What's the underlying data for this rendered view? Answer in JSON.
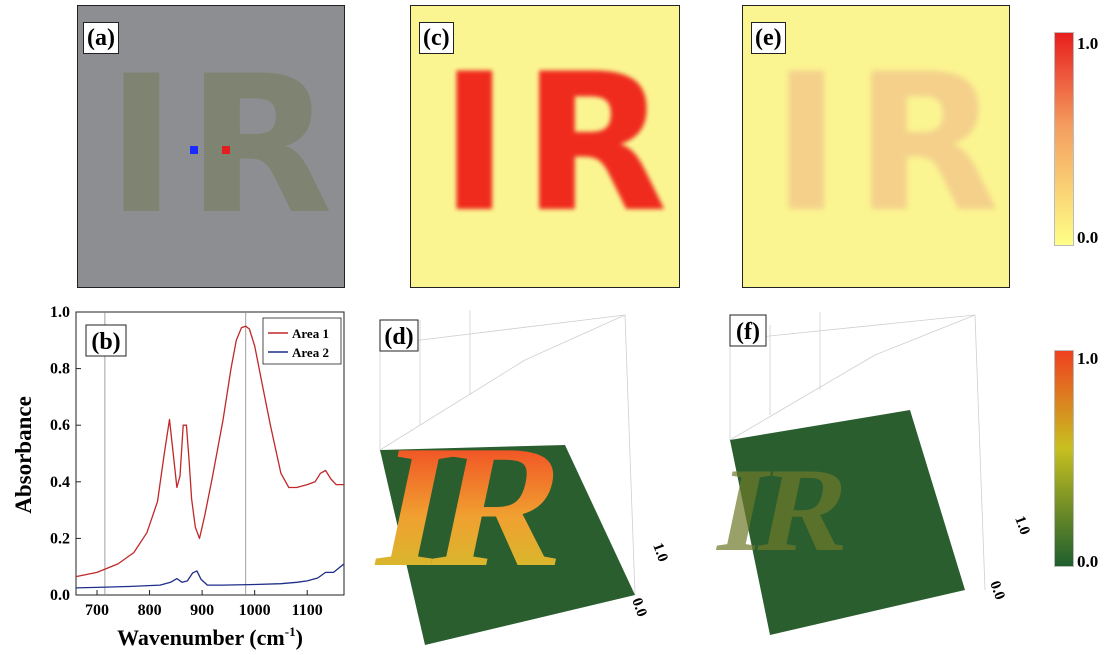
{
  "panels": {
    "a": {
      "label": "(a)",
      "image_text": "IR"
    },
    "b": {
      "label": "(b)"
    },
    "c": {
      "label": "(c)",
      "image_text": "IR"
    },
    "d": {
      "label": "(d)",
      "image_text": "IR"
    },
    "e": {
      "label": "(e)",
      "image_text": "IR"
    },
    "f": {
      "label": "(f)",
      "image_text": "IR"
    }
  },
  "colorbar_top": {
    "max": "1.0",
    "min": "0.0",
    "colors": [
      "#ffff88",
      "#f4a060",
      "#e81e1e"
    ]
  },
  "colorbar_bottom": {
    "max": "1.0",
    "min": "0.0",
    "colors": [
      "#1e5e2e",
      "#c8c020",
      "#f04020"
    ]
  },
  "axis3d_d": {
    "z_min": "0.0",
    "z_max": "1.0"
  },
  "axis3d_f": {
    "z_min": "0.0",
    "z_max": "1.0"
  },
  "colors": {
    "area1": "#c0282a",
    "area2": "#1f2d8a",
    "panel_a_bg": "#8c8e92",
    "panel_ce_bg": "#fbf591",
    "floor_green": "#2a5e2f"
  },
  "chart_data": {
    "type": "line",
    "xlabel": "Wavenumber (cm",
    "xlabel_sup": "-1",
    "xlabel_close": ")",
    "ylabel": "Absorbance",
    "xlim": [
      660,
      1170
    ],
    "ylim": [
      0.0,
      1.0
    ],
    "xticks": [
      700,
      800,
      900,
      1000,
      1100
    ],
    "yticks": [
      "0.0",
      "0.2",
      "0.4",
      "0.6",
      "0.8",
      "1.0"
    ],
    "vlines": [
      715,
      983
    ],
    "legend_position": "top-right",
    "series": [
      {
        "name": "Area 1",
        "color": "#c0282a",
        "x": [
          660,
          700,
          740,
          770,
          795,
          815,
          828,
          838,
          845,
          852,
          858,
          864,
          870,
          875,
          880,
          887,
          895,
          905,
          920,
          940,
          955,
          965,
          975,
          983,
          990,
          1000,
          1015,
          1030,
          1050,
          1065,
          1080,
          1100,
          1115,
          1125,
          1135,
          1145,
          1155,
          1170
        ],
        "y": [
          0.065,
          0.08,
          0.11,
          0.15,
          0.22,
          0.33,
          0.5,
          0.62,
          0.5,
          0.38,
          0.42,
          0.6,
          0.6,
          0.48,
          0.34,
          0.24,
          0.2,
          0.28,
          0.42,
          0.62,
          0.8,
          0.9,
          0.945,
          0.95,
          0.94,
          0.88,
          0.74,
          0.6,
          0.43,
          0.38,
          0.38,
          0.39,
          0.4,
          0.43,
          0.44,
          0.41,
          0.39,
          0.39
        ]
      },
      {
        "name": "Area 2",
        "color": "#1f2d8a",
        "x": [
          660,
          700,
          760,
          820,
          840,
          852,
          862,
          872,
          882,
          890,
          898,
          910,
          940,
          1000,
          1050,
          1080,
          1100,
          1120,
          1135,
          1150,
          1170
        ],
        "y": [
          0.025,
          0.027,
          0.03,
          0.035,
          0.045,
          0.058,
          0.045,
          0.05,
          0.078,
          0.085,
          0.055,
          0.035,
          0.035,
          0.037,
          0.04,
          0.045,
          0.05,
          0.06,
          0.08,
          0.08,
          0.11
        ]
      }
    ]
  }
}
